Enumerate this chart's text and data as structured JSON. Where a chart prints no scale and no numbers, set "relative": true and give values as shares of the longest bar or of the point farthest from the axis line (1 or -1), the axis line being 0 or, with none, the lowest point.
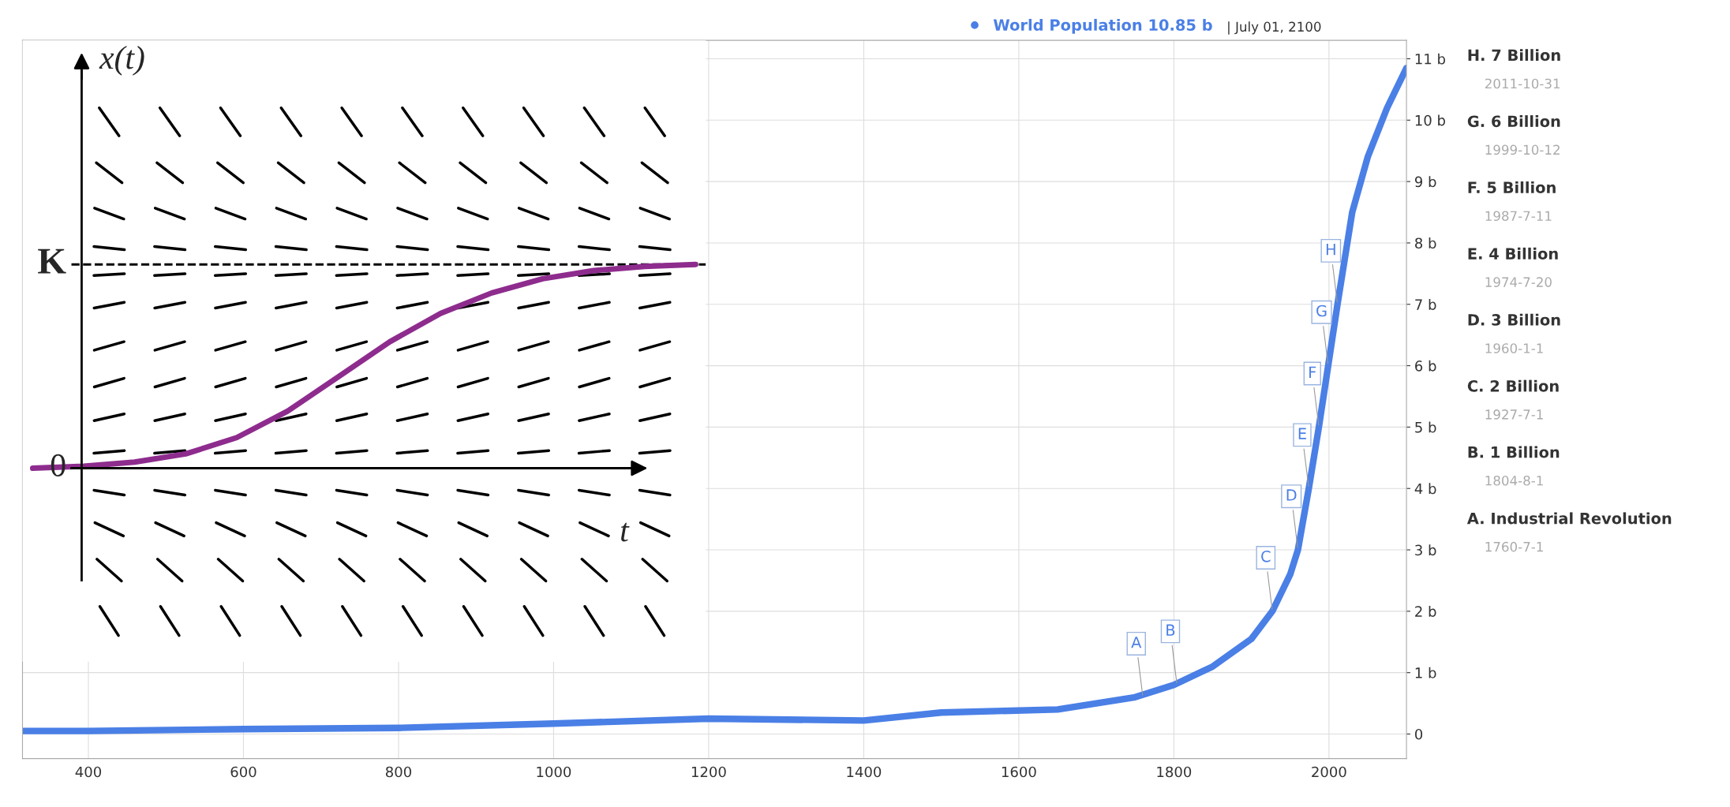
{
  "chart_data": [
    {
      "type": "line",
      "legend": "top right",
      "grid": true,
      "marker": "none",
      "line_style": "solid",
      "x": [
        315,
        400,
        600,
        800,
        1000,
        1200,
        1400,
        1500,
        1650,
        1750,
        1800,
        1850,
        1900,
        1927,
        1950,
        1960,
        1974,
        1987,
        1999,
        2011,
        2030,
        2050,
        2075,
        2100
      ],
      "series": [
        {
          "name": "World Population 10.85 b",
          "color": "#4a7fe6",
          "values": [
            0.05,
            0.05,
            0.08,
            0.1,
            0.17,
            0.25,
            0.22,
            0.35,
            0.4,
            0.6,
            0.8,
            1.1,
            1.55,
            2.0,
            2.6,
            3.0,
            4.0,
            5.0,
            6.0,
            7.0,
            8.5,
            9.4,
            10.2,
            10.85
          ]
        }
      ],
      "xlim": [
        315,
        2100
      ],
      "ylim": [
        -0.4,
        11.3
      ],
      "xticks": [
        400,
        600,
        800,
        1000,
        1200,
        1400,
        1600,
        1800,
        2000
      ],
      "yticks": [
        0,
        {
          "value": 1,
          "label": "1 b"
        },
        {
          "value": 2,
          "label": "2 b"
        },
        {
          "value": 3,
          "label": "3 b"
        },
        {
          "value": 4,
          "label": "4 b"
        },
        {
          "value": 5,
          "label": "5 b"
        },
        {
          "value": 6,
          "label": "6 b"
        },
        {
          "value": 7,
          "label": "7 b"
        },
        {
          "value": 8,
          "label": "8 b"
        },
        {
          "value": 9,
          "label": "9 b"
        },
        {
          "value": 10,
          "label": "10 b"
        },
        {
          "value": 11,
          "label": "11 b"
        }
      ],
      "annotations": [
        "| July 01, 2100",
        "H. 7 Billion",
        "2011-10-31",
        "G. 6 Billion",
        "1999-10-12",
        "F. 5 Billion",
        "1987-7-11",
        "E. 4 Billion",
        "1974-7-20",
        "D. 3 Billion",
        "1960-1-1",
        "C. 2 Billion",
        "1927-7-1",
        "B. 1 Billion",
        "1804-8-1",
        "A. Industrial Revolution",
        "1760-7-1",
        {
          "text": "A",
          "x": 1760,
          "y": 0.6
        },
        {
          "text": "B",
          "x": 1804,
          "y": 0.8
        },
        {
          "text": "C",
          "x": 1927,
          "y": 2.0
        },
        {
          "text": "D",
          "x": 1960,
          "y": 3.0
        },
        {
          "text": "E",
          "x": 1974,
          "y": 4.0
        },
        {
          "text": "F",
          "x": 1987,
          "y": 5.0
        },
        {
          "text": "G",
          "x": 1999,
          "y": 6.0
        },
        {
          "text": "H",
          "x": 2011,
          "y": 7.0
        }
      ]
    },
    {
      "type": "line",
      "relative": true,
      "xlabel": "t",
      "ylabel": "x(t)",
      "categories": [
        null,
        null,
        null,
        null,
        null,
        null,
        null,
        null,
        null,
        null,
        null,
        null,
        null,
        null
      ],
      "series": [
        {
          "color": "#8e2c8e",
          "values": [
            0.0,
            0.01,
            0.03,
            0.07,
            0.15,
            0.28,
            0.45,
            0.62,
            0.76,
            0.86,
            0.93,
            0.97,
            0.99,
            1.0
          ]
        }
      ],
      "ref_lines": [
        {
          "axis": "y",
          "value": 1,
          "label": "K",
          "line_style": "dashed",
          "color": "#000000"
        }
      ],
      "annotations": [
        {
          "text": "0",
          "y": 0
        }
      ]
    }
  ]
}
